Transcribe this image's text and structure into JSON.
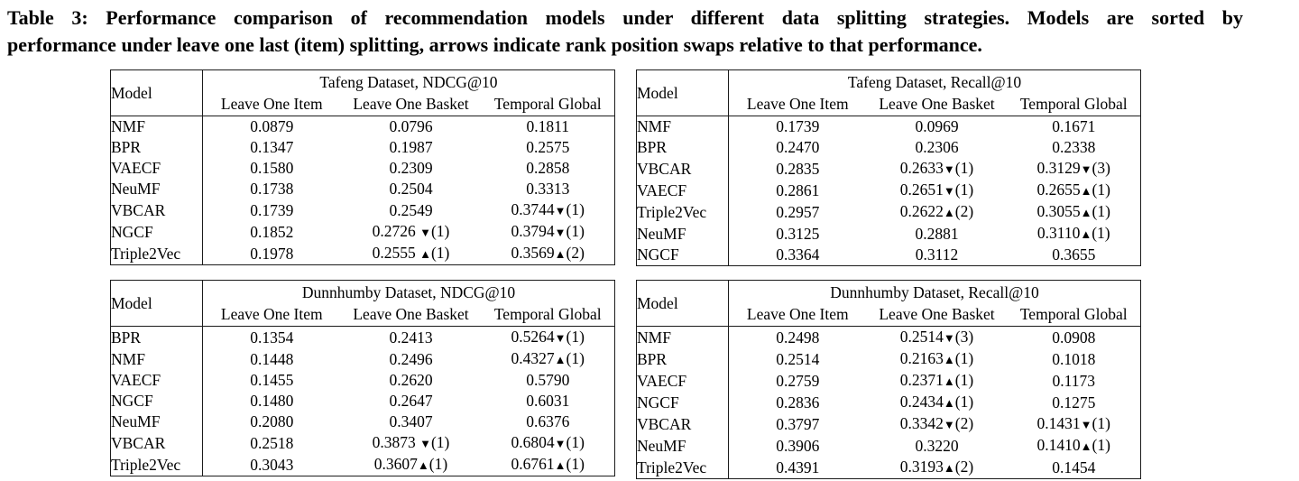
{
  "colors": {
    "background": "#ffffff",
    "text": "#000000",
    "border": "#1b1b1b"
  },
  "caption": {
    "lines": [
      "Table 3: Performance comparison of recommendation models under different data splitting strategies. Models are sorted by",
      "performance under leave one last (item) splitting, arrows indicate rank position swaps relative to that performance."
    ]
  },
  "tables": [
    {
      "id": "tafeng-ndcg10",
      "model_header": "Model",
      "title": "Tafeng Dataset, NDCG@10",
      "columns": [
        "Leave One Item",
        "Leave One Basket",
        "Temporal Global"
      ],
      "rows": [
        {
          "model": "NMF",
          "cells": [
            "0.0879",
            "0.0796",
            "0.1811"
          ]
        },
        {
          "model": "BPR",
          "cells": [
            "0.1347",
            "0.1987",
            "0.2575"
          ]
        },
        {
          "model": "VAECF",
          "cells": [
            "0.1580",
            "0.2309",
            "0.2858"
          ]
        },
        {
          "model": "NeuMF",
          "cells": [
            "0.1738",
            "0.2504",
            "0.3313"
          ]
        },
        {
          "model": "VBCAR",
          "cells": [
            "0.1739",
            "0.2549",
            "0.3744▼(1)"
          ]
        },
        {
          "model": "NGCF",
          "cells": [
            "0.1852",
            "0.2726 ▼(1)",
            "0.3794▼(1)"
          ]
        },
        {
          "model": "Triple2Vec",
          "cells": [
            "0.1978",
            "0.2555 ▲(1)",
            "0.3569▲(2)"
          ]
        }
      ]
    },
    {
      "id": "tafeng-recall10",
      "model_header": "Model",
      "title": "Tafeng Dataset, Recall@10",
      "columns": [
        "Leave One Item",
        "Leave One Basket",
        "Temporal Global"
      ],
      "rows": [
        {
          "model": "NMF",
          "cells": [
            "0.1739",
            "0.0969",
            "0.1671"
          ]
        },
        {
          "model": "BPR",
          "cells": [
            "0.2470",
            "0.2306",
            "0.2338"
          ]
        },
        {
          "model": "VBCAR",
          "cells": [
            "0.2835",
            "0.2633▼(1)",
            "0.3129▼(3)"
          ]
        },
        {
          "model": "VAECF",
          "cells": [
            "0.2861",
            "0.2651▼(1)",
            "0.2655▲(1)"
          ]
        },
        {
          "model": "Triple2Vec",
          "cells": [
            "0.2957",
            "0.2622▲(2)",
            "0.3055▲(1)"
          ]
        },
        {
          "model": "NeuMF",
          "cells": [
            "0.3125",
            "0.2881",
            "0.3110▲(1)"
          ]
        },
        {
          "model": "NGCF",
          "cells": [
            "0.3364",
            "0.3112",
            "0.3655"
          ]
        }
      ]
    },
    {
      "id": "dunnhumby-ndcg10",
      "model_header": "Model",
      "title": "Dunnhumby Dataset, NDCG@10",
      "columns": [
        "Leave One Item",
        "Leave One Basket",
        "Temporal Global"
      ],
      "rows": [
        {
          "model": "BPR",
          "cells": [
            "0.1354",
            "0.2413",
            "0.5264▼(1)"
          ]
        },
        {
          "model": "NMF",
          "cells": [
            "0.1448",
            "0.2496",
            "0.4327▲(1)"
          ]
        },
        {
          "model": "VAECF",
          "cells": [
            "0.1455",
            "0.2620",
            "0.5790"
          ]
        },
        {
          "model": "NGCF",
          "cells": [
            "0.1480",
            "0.2647",
            "0.6031"
          ]
        },
        {
          "model": "NeuMF",
          "cells": [
            "0.2080",
            "0.3407",
            "0.6376"
          ]
        },
        {
          "model": "VBCAR",
          "cells": [
            "0.2518",
            "0.3873 ▼(1)",
            "0.6804▼(1)"
          ]
        },
        {
          "model": "Triple2Vec",
          "cells": [
            "0.3043",
            "0.3607▲(1)",
            "0.6761▲(1)"
          ]
        }
      ]
    },
    {
      "id": "dunnhumby-recall10",
      "model_header": "Model",
      "title": "Dunnhumby Dataset, Recall@10",
      "columns": [
        "Leave One Item",
        "Leave One Basket",
        "Temporal Global"
      ],
      "rows": [
        {
          "model": "NMF",
          "cells": [
            "0.2498",
            "0.2514▼(3)",
            "0.0908"
          ]
        },
        {
          "model": "BPR",
          "cells": [
            "0.2514",
            "0.2163▲(1)",
            "0.1018"
          ]
        },
        {
          "model": "VAECF",
          "cells": [
            "0.2759",
            "0.2371▲(1)",
            "0.1173"
          ]
        },
        {
          "model": "NGCF",
          "cells": [
            "0.2836",
            "0.2434▲(1)",
            "0.1275"
          ]
        },
        {
          "model": "VBCAR",
          "cells": [
            "0.3797",
            "0.3342▼(2)",
            "0.1431▼(1)"
          ]
        },
        {
          "model": "NeuMF",
          "cells": [
            "0.3906",
            "0.3220",
            "0.1410▲(1)"
          ]
        },
        {
          "model": "Triple2Vec",
          "cells": [
            "0.4391",
            "0.3193▲(2)",
            "0.1454"
          ]
        }
      ]
    }
  ]
}
